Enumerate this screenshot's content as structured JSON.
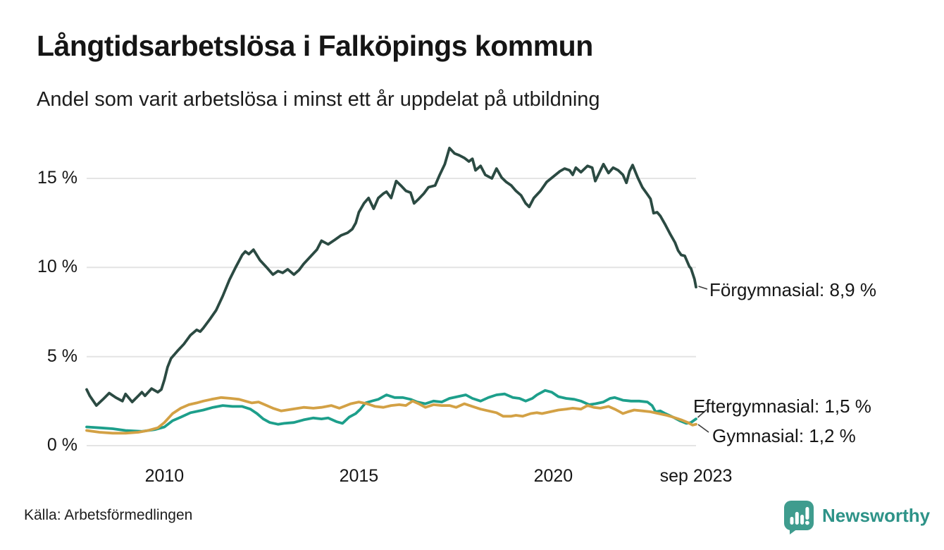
{
  "header": {
    "title": "Långtidsarbetslösa i Falköpings kommun",
    "subtitle": "Andel som varit arbetslösa i minst ett år uppdelat på utbildning"
  },
  "footer": {
    "source": "Källa: Arbetsförmedlingen",
    "logo_text": "Newsworthy"
  },
  "colors": {
    "forgymnasial": "#2b4a42",
    "eftergymnasial": "#1d9f8b",
    "gymnasial": "#d3a145",
    "gridline": "#e4e4e4",
    "logo_teal": "#3f9c8e",
    "logo_wordmark": "#2e9388",
    "text": "#161616"
  },
  "chart_data": {
    "type": "line",
    "title": "Långtidsarbetslösa i Falköpings kommun",
    "subtitle": "Andel som varit arbetslösa i minst ett år uppdelat på utbildning",
    "unit": "%",
    "x_range": [
      2008,
      2023.67
    ],
    "y_range": [
      0,
      17.2
    ],
    "grid": "horizontal",
    "legend_position": "end-of-line-labels",
    "y_ticks": {
      "values": [
        0,
        5,
        10,
        15
      ],
      "labels": [
        "0 %",
        "5 %",
        "10 %",
        "15 %"
      ]
    },
    "x_ticks": {
      "values": [
        2010,
        2015,
        2020,
        2023.67
      ],
      "labels": [
        "2010",
        "2015",
        "2020",
        "sep 2023"
      ]
    },
    "series": [
      {
        "name": "Förgymnasial",
        "end_label": "Förgymnasial: 8,9 %",
        "end_value_pct": 8.9,
        "color": "#2b4a42",
        "points": [
          [
            2008.0,
            3.15
          ],
          [
            2008.08,
            2.8
          ],
          [
            2008.25,
            2.25
          ],
          [
            2008.42,
            2.6
          ],
          [
            2008.58,
            2.95
          ],
          [
            2008.75,
            2.7
          ],
          [
            2008.92,
            2.5
          ],
          [
            2009.0,
            2.9
          ],
          [
            2009.17,
            2.45
          ],
          [
            2009.33,
            2.8
          ],
          [
            2009.42,
            3.0
          ],
          [
            2009.5,
            2.8
          ],
          [
            2009.67,
            3.2
          ],
          [
            2009.83,
            3.0
          ],
          [
            2009.92,
            3.15
          ],
          [
            2010.0,
            3.7
          ],
          [
            2010.08,
            4.4
          ],
          [
            2010.17,
            4.9
          ],
          [
            2010.33,
            5.3
          ],
          [
            2010.5,
            5.7
          ],
          [
            2010.67,
            6.2
          ],
          [
            2010.83,
            6.5
          ],
          [
            2010.92,
            6.4
          ],
          [
            2011.0,
            6.6
          ],
          [
            2011.17,
            7.1
          ],
          [
            2011.33,
            7.6
          ],
          [
            2011.5,
            8.4
          ],
          [
            2011.67,
            9.3
          ],
          [
            2011.83,
            10.0
          ],
          [
            2012.0,
            10.7
          ],
          [
            2012.08,
            10.9
          ],
          [
            2012.17,
            10.75
          ],
          [
            2012.29,
            11.0
          ],
          [
            2012.46,
            10.4
          ],
          [
            2012.63,
            10.0
          ],
          [
            2012.79,
            9.6
          ],
          [
            2012.92,
            9.8
          ],
          [
            2013.04,
            9.7
          ],
          [
            2013.17,
            9.9
          ],
          [
            2013.33,
            9.6
          ],
          [
            2013.46,
            9.85
          ],
          [
            2013.58,
            10.2
          ],
          [
            2013.75,
            10.6
          ],
          [
            2013.92,
            11.0
          ],
          [
            2014.04,
            11.5
          ],
          [
            2014.21,
            11.3
          ],
          [
            2014.38,
            11.55
          ],
          [
            2014.54,
            11.8
          ],
          [
            2014.71,
            11.95
          ],
          [
            2014.83,
            12.15
          ],
          [
            2014.92,
            12.5
          ],
          [
            2015.0,
            13.1
          ],
          [
            2015.13,
            13.6
          ],
          [
            2015.25,
            13.9
          ],
          [
            2015.38,
            13.3
          ],
          [
            2015.5,
            13.9
          ],
          [
            2015.63,
            14.15
          ],
          [
            2015.71,
            14.25
          ],
          [
            2015.83,
            13.9
          ],
          [
            2015.96,
            14.85
          ],
          [
            2016.08,
            14.6
          ],
          [
            2016.21,
            14.3
          ],
          [
            2016.33,
            14.2
          ],
          [
            2016.42,
            13.6
          ],
          [
            2016.54,
            13.85
          ],
          [
            2016.67,
            14.15
          ],
          [
            2016.79,
            14.5
          ],
          [
            2016.96,
            14.6
          ],
          [
            2017.08,
            15.2
          ],
          [
            2017.21,
            15.8
          ],
          [
            2017.33,
            16.7
          ],
          [
            2017.46,
            16.4
          ],
          [
            2017.58,
            16.3
          ],
          [
            2017.71,
            16.15
          ],
          [
            2017.83,
            15.95
          ],
          [
            2017.92,
            16.1
          ],
          [
            2018.0,
            15.45
          ],
          [
            2018.13,
            15.7
          ],
          [
            2018.25,
            15.2
          ],
          [
            2018.42,
            15.0
          ],
          [
            2018.54,
            15.55
          ],
          [
            2018.67,
            15.05
          ],
          [
            2018.79,
            14.8
          ],
          [
            2018.92,
            14.6
          ],
          [
            2019.04,
            14.3
          ],
          [
            2019.17,
            14.05
          ],
          [
            2019.29,
            13.6
          ],
          [
            2019.38,
            13.4
          ],
          [
            2019.5,
            13.9
          ],
          [
            2019.67,
            14.3
          ],
          [
            2019.83,
            14.8
          ],
          [
            2020.0,
            15.1
          ],
          [
            2020.17,
            15.4
          ],
          [
            2020.29,
            15.55
          ],
          [
            2020.42,
            15.45
          ],
          [
            2020.5,
            15.2
          ],
          [
            2020.58,
            15.6
          ],
          [
            2020.71,
            15.35
          ],
          [
            2020.88,
            15.7
          ],
          [
            2021.0,
            15.6
          ],
          [
            2021.08,
            14.85
          ],
          [
            2021.29,
            15.8
          ],
          [
            2021.42,
            15.3
          ],
          [
            2021.54,
            15.6
          ],
          [
            2021.67,
            15.45
          ],
          [
            2021.79,
            15.2
          ],
          [
            2021.88,
            14.75
          ],
          [
            2021.96,
            15.4
          ],
          [
            2022.04,
            15.75
          ],
          [
            2022.17,
            15.05
          ],
          [
            2022.29,
            14.5
          ],
          [
            2022.42,
            14.1
          ],
          [
            2022.5,
            13.85
          ],
          [
            2022.58,
            13.05
          ],
          [
            2022.67,
            13.1
          ],
          [
            2022.75,
            12.9
          ],
          [
            2022.88,
            12.4
          ],
          [
            2023.0,
            11.9
          ],
          [
            2023.13,
            11.4
          ],
          [
            2023.21,
            10.95
          ],
          [
            2023.29,
            10.7
          ],
          [
            2023.38,
            10.65
          ],
          [
            2023.5,
            10.05
          ],
          [
            2023.54,
            9.95
          ],
          [
            2023.63,
            9.35
          ],
          [
            2023.67,
            8.9
          ]
        ]
      },
      {
        "name": "Eftergymnasial",
        "end_label": "Eftergymnasial: 1,5 %",
        "end_value_pct": 1.5,
        "color": "#1d9f8b",
        "points": [
          [
            2008.0,
            1.05
          ],
          [
            2008.33,
            1.0
          ],
          [
            2008.67,
            0.95
          ],
          [
            2009.0,
            0.85
          ],
          [
            2009.42,
            0.8
          ],
          [
            2009.75,
            0.9
          ],
          [
            2010.0,
            1.05
          ],
          [
            2010.21,
            1.4
          ],
          [
            2010.42,
            1.6
          ],
          [
            2010.67,
            1.85
          ],
          [
            2011.0,
            2.0
          ],
          [
            2011.25,
            2.15
          ],
          [
            2011.5,
            2.25
          ],
          [
            2011.75,
            2.2
          ],
          [
            2012.0,
            2.2
          ],
          [
            2012.21,
            2.05
          ],
          [
            2012.38,
            1.8
          ],
          [
            2012.54,
            1.5
          ],
          [
            2012.71,
            1.3
          ],
          [
            2012.92,
            1.2
          ],
          [
            2013.08,
            1.25
          ],
          [
            2013.33,
            1.3
          ],
          [
            2013.58,
            1.45
          ],
          [
            2013.83,
            1.55
          ],
          [
            2014.04,
            1.5
          ],
          [
            2014.21,
            1.55
          ],
          [
            2014.42,
            1.35
          ],
          [
            2014.58,
            1.25
          ],
          [
            2014.75,
            1.6
          ],
          [
            2014.92,
            1.8
          ],
          [
            2015.04,
            2.05
          ],
          [
            2015.17,
            2.4
          ],
          [
            2015.33,
            2.5
          ],
          [
            2015.5,
            2.6
          ],
          [
            2015.71,
            2.85
          ],
          [
            2015.92,
            2.7
          ],
          [
            2016.13,
            2.7
          ],
          [
            2016.33,
            2.6
          ],
          [
            2016.5,
            2.45
          ],
          [
            2016.71,
            2.35
          ],
          [
            2016.92,
            2.5
          ],
          [
            2017.13,
            2.45
          ],
          [
            2017.33,
            2.65
          ],
          [
            2017.54,
            2.75
          ],
          [
            2017.75,
            2.85
          ],
          [
            2017.92,
            2.65
          ],
          [
            2018.13,
            2.5
          ],
          [
            2018.33,
            2.7
          ],
          [
            2018.54,
            2.85
          ],
          [
            2018.75,
            2.9
          ],
          [
            2018.96,
            2.7
          ],
          [
            2019.13,
            2.65
          ],
          [
            2019.29,
            2.5
          ],
          [
            2019.46,
            2.65
          ],
          [
            2019.58,
            2.85
          ],
          [
            2019.79,
            3.1
          ],
          [
            2019.96,
            3.0
          ],
          [
            2020.13,
            2.75
          ],
          [
            2020.33,
            2.65
          ],
          [
            2020.54,
            2.6
          ],
          [
            2020.71,
            2.5
          ],
          [
            2020.92,
            2.3
          ],
          [
            2021.08,
            2.35
          ],
          [
            2021.29,
            2.45
          ],
          [
            2021.46,
            2.65
          ],
          [
            2021.58,
            2.7
          ],
          [
            2021.79,
            2.55
          ],
          [
            2022.0,
            2.5
          ],
          [
            2022.21,
            2.5
          ],
          [
            2022.42,
            2.45
          ],
          [
            2022.54,
            2.25
          ],
          [
            2022.63,
            1.9
          ],
          [
            2022.75,
            1.95
          ],
          [
            2022.88,
            1.8
          ],
          [
            2023.08,
            1.6
          ],
          [
            2023.25,
            1.4
          ],
          [
            2023.42,
            1.25
          ],
          [
            2023.54,
            1.3
          ],
          [
            2023.67,
            1.5
          ]
        ]
      },
      {
        "name": "Gymnasial",
        "end_label": "Gymnasial: 1,2 %",
        "end_value_pct": 1.2,
        "color": "#d3a145",
        "points": [
          [
            2008.0,
            0.85
          ],
          [
            2008.33,
            0.75
          ],
          [
            2008.67,
            0.7
          ],
          [
            2009.0,
            0.7
          ],
          [
            2009.33,
            0.75
          ],
          [
            2009.58,
            0.85
          ],
          [
            2009.83,
            1.0
          ],
          [
            2010.0,
            1.3
          ],
          [
            2010.21,
            1.8
          ],
          [
            2010.42,
            2.1
          ],
          [
            2010.63,
            2.3
          ],
          [
            2010.83,
            2.4
          ],
          [
            2011.0,
            2.5
          ],
          [
            2011.21,
            2.6
          ],
          [
            2011.46,
            2.7
          ],
          [
            2011.71,
            2.65
          ],
          [
            2011.92,
            2.6
          ],
          [
            2012.08,
            2.5
          ],
          [
            2012.25,
            2.4
          ],
          [
            2012.42,
            2.45
          ],
          [
            2012.58,
            2.3
          ],
          [
            2012.79,
            2.1
          ],
          [
            2013.0,
            1.95
          ],
          [
            2013.29,
            2.05
          ],
          [
            2013.58,
            2.15
          ],
          [
            2013.83,
            2.1
          ],
          [
            2014.04,
            2.15
          ],
          [
            2014.29,
            2.25
          ],
          [
            2014.5,
            2.1
          ],
          [
            2014.79,
            2.35
          ],
          [
            2015.0,
            2.45
          ],
          [
            2015.21,
            2.35
          ],
          [
            2015.42,
            2.2
          ],
          [
            2015.63,
            2.15
          ],
          [
            2015.83,
            2.25
          ],
          [
            2016.04,
            2.3
          ],
          [
            2016.21,
            2.25
          ],
          [
            2016.38,
            2.5
          ],
          [
            2016.54,
            2.35
          ],
          [
            2016.71,
            2.15
          ],
          [
            2016.92,
            2.3
          ],
          [
            2017.13,
            2.25
          ],
          [
            2017.33,
            2.25
          ],
          [
            2017.5,
            2.15
          ],
          [
            2017.71,
            2.35
          ],
          [
            2017.92,
            2.2
          ],
          [
            2018.13,
            2.05
          ],
          [
            2018.33,
            1.95
          ],
          [
            2018.54,
            1.85
          ],
          [
            2018.71,
            1.65
          ],
          [
            2018.92,
            1.65
          ],
          [
            2019.04,
            1.7
          ],
          [
            2019.21,
            1.65
          ],
          [
            2019.42,
            1.8
          ],
          [
            2019.58,
            1.85
          ],
          [
            2019.71,
            1.8
          ],
          [
            2019.92,
            1.9
          ],
          [
            2020.13,
            2.0
          ],
          [
            2020.33,
            2.05
          ],
          [
            2020.5,
            2.1
          ],
          [
            2020.71,
            2.05
          ],
          [
            2020.88,
            2.25
          ],
          [
            2021.04,
            2.15
          ],
          [
            2021.21,
            2.1
          ],
          [
            2021.42,
            2.2
          ],
          [
            2021.58,
            2.05
          ],
          [
            2021.71,
            1.9
          ],
          [
            2021.79,
            1.8
          ],
          [
            2021.92,
            1.9
          ],
          [
            2022.08,
            2.0
          ],
          [
            2022.29,
            1.95
          ],
          [
            2022.5,
            1.9
          ],
          [
            2022.71,
            1.8
          ],
          [
            2022.92,
            1.7
          ],
          [
            2023.08,
            1.6
          ],
          [
            2023.29,
            1.45
          ],
          [
            2023.46,
            1.3
          ],
          [
            2023.58,
            1.15
          ],
          [
            2023.67,
            1.2
          ]
        ]
      }
    ]
  }
}
